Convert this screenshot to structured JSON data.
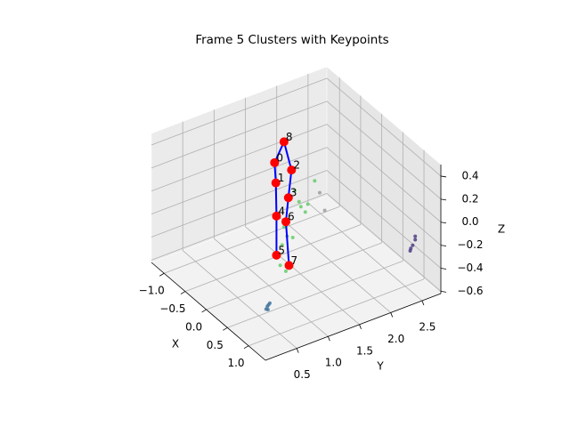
{
  "chart_data": {
    "type": "scatter3d",
    "title": "Frame 5 Clusters with Keypoints",
    "xlabel": "X",
    "ylabel": "Y",
    "zlabel": "Z",
    "xlim": [
      -1.3,
      1.4
    ],
    "ylim": [
      0.0,
      2.8
    ],
    "zlim": [
      -0.62,
      0.5
    ],
    "xticks": [
      {
        "value": -1.0,
        "label": "−1.0"
      },
      {
        "value": -0.5,
        "label": "−0.5"
      },
      {
        "value": 0.0,
        "label": "0.0"
      },
      {
        "value": 0.5,
        "label": "0.5"
      },
      {
        "value": 1.0,
        "label": "1.0"
      }
    ],
    "yticks": [
      {
        "value": 0.5,
        "label": "0.5"
      },
      {
        "value": 1.0,
        "label": "1.0"
      },
      {
        "value": 1.5,
        "label": "1.5"
      },
      {
        "value": 2.0,
        "label": "2.0"
      },
      {
        "value": 2.5,
        "label": "2.5"
      }
    ],
    "zticks": [
      {
        "value": -0.6,
        "label": "−0.6"
      },
      {
        "value": -0.4,
        "label": "−0.4"
      },
      {
        "value": -0.2,
        "label": "−0.2"
      },
      {
        "value": 0.0,
        "label": "0.0"
      },
      {
        "value": 0.2,
        "label": "0.2"
      },
      {
        "value": 0.4,
        "label": "0.4"
      }
    ],
    "series": [
      {
        "color": "#5ec962",
        "x": [
          0,
          0,
          0,
          0,
          0,
          0,
          0,
          0,
          0,
          0,
          0,
          0
        ],
        "y": [
          1.73,
          1.51,
          1.58,
          1.48,
          1.41,
          1.24,
          1.29,
          1.21,
          1.18,
          1.27,
          1.38,
          1.62
        ],
        "z": [
          0.14,
          -0.04,
          -0.1,
          0.01,
          0.12,
          -0.16,
          -0.25,
          -0.31,
          -0.48,
          -0.55,
          -0.28,
          -0.04
        ]
      },
      {
        "color": "#999999",
        "x": [
          0,
          0
        ],
        "y": [
          1.81,
          1.89
        ],
        "z": [
          0.02,
          -0.15
        ]
      },
      {
        "color": "#46327e",
        "x": [
          1.0,
          1.0,
          1.0,
          1.0,
          1.0
        ],
        "y": [
          2.59,
          2.62,
          2.58,
          2.66,
          2.66
        ],
        "z": [
          -0.31,
          -0.29,
          -0.33,
          -0.22,
          -0.25
        ]
      },
      {
        "color": "#3b6f9b",
        "x": [
          1.0,
          1.0,
          1.0,
          1.0,
          1.0
        ],
        "y": [
          0.3,
          0.32,
          0.28,
          0.34,
          0.31
        ],
        "z": [
          -0.34,
          -0.33,
          -0.36,
          -0.32,
          -0.37
        ]
      }
    ],
    "keypoints": {
      "color": "#ff0000",
      "labels": [
        "0",
        "1",
        "2",
        "3",
        "4",
        "5",
        "6",
        "7",
        "8"
      ],
      "x": [
        0,
        0,
        0,
        0,
        0,
        0,
        0,
        0,
        0
      ],
      "y": [
        1.09,
        1.11,
        1.36,
        1.31,
        1.12,
        1.12,
        1.27,
        1.32,
        1.24
      ],
      "z": [
        0.43,
        0.25,
        0.31,
        0.08,
        -0.04,
        -0.38,
        -0.12,
        -0.51,
        0.58
      ]
    },
    "connections": [
      [
        8,
        0
      ],
      [
        0,
        1
      ],
      [
        1,
        4
      ],
      [
        4,
        5
      ],
      [
        8,
        2
      ],
      [
        2,
        3
      ],
      [
        3,
        6
      ],
      [
        6,
        7
      ]
    ],
    "connection_color": "#0000ff"
  }
}
